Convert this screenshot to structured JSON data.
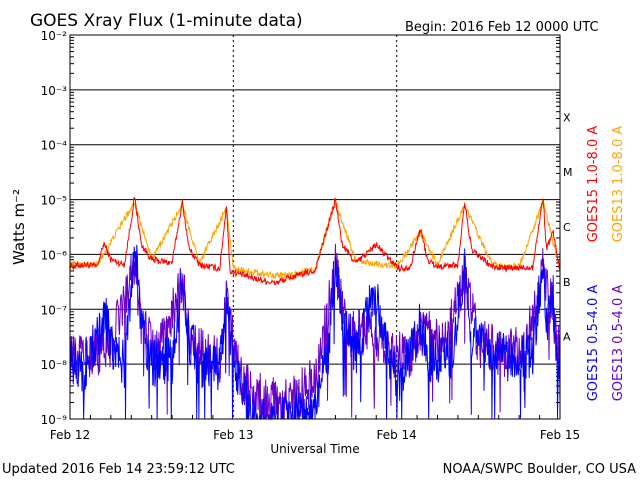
{
  "header": {
    "title": "GOES Xray Flux (1-minute data)",
    "begin": "Begin:  2016 Feb 12 0000 UTC"
  },
  "footer": {
    "updated": "Updated 2016 Feb 14 23:59:12 UTC",
    "credit": "NOAA/SWPC Boulder, CO USA"
  },
  "colors": {
    "goes15_long": "#ff0000",
    "goes13_long": "#ffa500",
    "goes15_short": "#0000ff",
    "goes13_short": "#6a00c8",
    "grid": "#000000"
  },
  "chart_data": {
    "type": "line",
    "title": "GOES Xray Flux (1-minute data)",
    "xlabel": "Universal Time",
    "ylabel": "Watts m⁻²",
    "yscale": "log",
    "ylim": [
      1e-09,
      0.01
    ],
    "xlim": [
      0,
      72
    ],
    "x_unit": "hours since 2016 Feb 12 0000 UTC",
    "x_ticks": [
      {
        "x": 0,
        "label": "Feb 12"
      },
      {
        "x": 24,
        "label": "Feb 13"
      },
      {
        "x": 48,
        "label": "Feb 14"
      },
      {
        "x": 72,
        "label": "Feb 15"
      }
    ],
    "y_ticks": [
      {
        "y": 1e-09,
        "label": "10⁻⁹"
      },
      {
        "y": 1e-08,
        "label": "10⁻⁸"
      },
      {
        "y": 1e-07,
        "label": "10⁻⁷"
      },
      {
        "y": 1e-06,
        "label": "10⁻⁶"
      },
      {
        "y": 1e-05,
        "label": "10⁻⁵"
      },
      {
        "y": 0.0001,
        "label": "10⁻⁴"
      },
      {
        "y": 0.001,
        "label": "10⁻³"
      },
      {
        "y": 0.01,
        "label": "10⁻²"
      }
    ],
    "flare_classes": [
      {
        "label": "A",
        "y": 3.16e-08
      },
      {
        "label": "B",
        "y": 3.16e-07
      },
      {
        "label": "C",
        "y": 3.16e-06
      },
      {
        "label": "M",
        "y": 3.16e-05
      },
      {
        "label": "X",
        "y": 0.000316
      }
    ],
    "grid": true,
    "legend_position": "right",
    "series": [
      {
        "name": "GOES15 1.0-8.0 A",
        "color": "#ff0000",
        "points": [
          [
            0,
            6e-07
          ],
          [
            2,
            6.5e-07
          ],
          [
            4,
            6e-07
          ],
          [
            5,
            1.6e-06
          ],
          [
            6,
            8e-07
          ],
          [
            8,
            6.5e-07
          ],
          [
            9.5,
            1.1e-05
          ],
          [
            10.5,
            1.5e-06
          ],
          [
            12,
            8e-07
          ],
          [
            15,
            7e-07
          ],
          [
            16.5,
            9e-06
          ],
          [
            17.5,
            1.3e-06
          ],
          [
            19,
            6.5e-07
          ],
          [
            22,
            5.5e-07
          ],
          [
            23,
            8e-06
          ],
          [
            23.5,
            5e-07
          ],
          [
            26,
            4e-07
          ],
          [
            30,
            3e-07
          ],
          [
            33,
            4e-07
          ],
          [
            36,
            5e-07
          ],
          [
            39,
            1e-05
          ],
          [
            40,
            1.5e-06
          ],
          [
            42,
            7e-07
          ],
          [
            45,
            1.5e-06
          ],
          [
            47,
            8e-07
          ],
          [
            48.5,
            5.5e-07
          ],
          [
            50,
            6e-07
          ],
          [
            51.5,
            3e-06
          ],
          [
            52.5,
            8e-07
          ],
          [
            54,
            6e-07
          ],
          [
            57,
            6.5e-07
          ],
          [
            58,
            9e-06
          ],
          [
            59,
            1.2e-06
          ],
          [
            62,
            6e-07
          ],
          [
            65,
            5.5e-07
          ],
          [
            68,
            6e-07
          ],
          [
            69.5,
            1.1e-05
          ],
          [
            70,
            1.3e-06
          ],
          [
            71,
            2.5e-06
          ],
          [
            72,
            5e-07
          ]
        ]
      },
      {
        "name": "GOES13 1.0-8.0 A",
        "color": "#ffa500",
        "points": [
          [
            0,
            6.5e-07
          ],
          [
            4,
            6.5e-07
          ],
          [
            9.5,
            9e-06
          ],
          [
            12,
            8e-07
          ],
          [
            16.5,
            8e-06
          ],
          [
            19,
            7e-07
          ],
          [
            23,
            7e-06
          ],
          [
            24,
            5.5e-07
          ],
          [
            28,
            4.5e-07
          ],
          [
            32,
            4e-07
          ],
          [
            36,
            5.5e-07
          ],
          [
            39,
            9e-06
          ],
          [
            42,
            7.5e-07
          ],
          [
            48,
            6e-07
          ],
          [
            51.5,
            2.5e-06
          ],
          [
            54,
            6.5e-07
          ],
          [
            58,
            8e-06
          ],
          [
            62,
            6.5e-07
          ],
          [
            66,
            6e-07
          ],
          [
            69.5,
            9e-06
          ],
          [
            72,
            5.5e-07
          ]
        ]
      },
      {
        "name": "GOES15 0.5-4.0 A",
        "color": "#0000ff",
        "points": [
          [
            0,
            1e-08
          ],
          [
            2,
            8e-09
          ],
          [
            4,
            3e-08
          ],
          [
            5,
            1e-07
          ],
          [
            6,
            2e-08
          ],
          [
            8,
            1e-08
          ],
          [
            9.5,
            1.5e-06
          ],
          [
            10.5,
            6e-08
          ],
          [
            12,
            1e-08
          ],
          [
            15,
            1.2e-08
          ],
          [
            16.5,
            4e-07
          ],
          [
            17.5,
            3e-08
          ],
          [
            19,
            1e-08
          ],
          [
            22,
            8e-09
          ],
          [
            23,
            2e-07
          ],
          [
            24,
            1e-08
          ],
          [
            27,
            1e-09
          ],
          [
            32,
            1e-09
          ],
          [
            36,
            1.5e-09
          ],
          [
            38,
            2e-08
          ],
          [
            39,
            8e-07
          ],
          [
            40,
            8e-08
          ],
          [
            42,
            1.5e-08
          ],
          [
            44,
            1e-07
          ],
          [
            45,
            2e-07
          ],
          [
            47,
            1.2e-08
          ],
          [
            48.5,
            5e-09
          ],
          [
            50,
            1.5e-08
          ],
          [
            51.5,
            5e-08
          ],
          [
            53,
            1.2e-08
          ],
          [
            56,
            1.5e-08
          ],
          [
            58,
            5e-07
          ],
          [
            59,
            3e-08
          ],
          [
            62,
            1.5e-08
          ],
          [
            65,
            1.2e-08
          ],
          [
            68,
            1.5e-08
          ],
          [
            69.5,
            8e-07
          ],
          [
            70,
            5e-08
          ],
          [
            71,
            1.5e-07
          ],
          [
            72,
            2e-09
          ]
        ]
      },
      {
        "name": "GOES13 0.5-4.0 A",
        "color": "#6a00c8",
        "points": [
          [
            0,
            1.2e-08
          ],
          [
            3,
            1.5e-08
          ],
          [
            6,
            2e-08
          ],
          [
            9.5,
            8e-07
          ],
          [
            10.5,
            5e-08
          ],
          [
            13,
            1.5e-08
          ],
          [
            16.5,
            3e-07
          ],
          [
            18,
            2e-08
          ],
          [
            22,
            1.2e-08
          ],
          [
            23,
            1.5e-07
          ],
          [
            25,
            5e-09
          ],
          [
            29,
            2e-09
          ],
          [
            33,
            2.5e-09
          ],
          [
            36,
            5e-09
          ],
          [
            39,
            6e-07
          ],
          [
            41,
            3e-08
          ],
          [
            44,
            5e-08
          ],
          [
            47,
            1.5e-08
          ],
          [
            50,
            1.5e-08
          ],
          [
            52,
            4e-08
          ],
          [
            55,
            2e-08
          ],
          [
            58,
            4e-07
          ],
          [
            60,
            2.5e-08
          ],
          [
            64,
            1.5e-08
          ],
          [
            67,
            2e-08
          ],
          [
            69.5,
            6e-07
          ],
          [
            71,
            8e-08
          ],
          [
            72,
            1.5e-08
          ]
        ]
      }
    ]
  }
}
